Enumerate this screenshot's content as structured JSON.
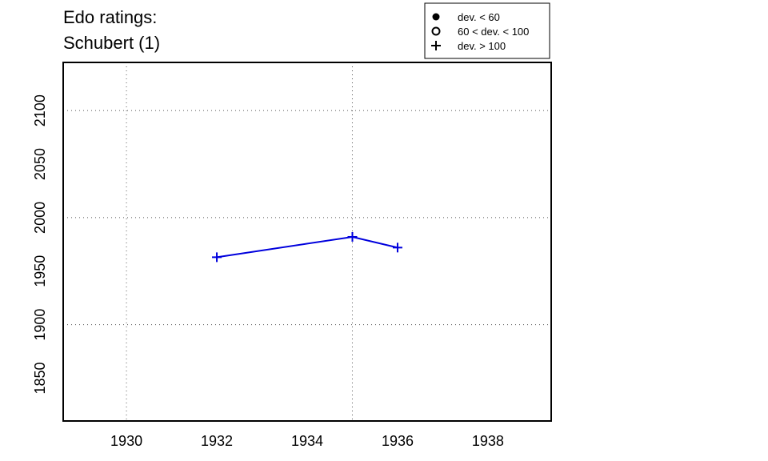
{
  "chart_data": {
    "type": "line",
    "title_lines": [
      "Edo ratings:",
      "Schubert (1)"
    ],
    "xlabel": "",
    "ylabel": "",
    "xlim": [
      1928.6,
      1939.4
    ],
    "ylim": [
      1810,
      2145
    ],
    "x_ticks": [
      1930,
      1932,
      1934,
      1936,
      1938
    ],
    "y_ticks": [
      1850,
      1900,
      1950,
      2000,
      2050,
      2100
    ],
    "x_grid": [
      1930,
      1935
    ],
    "y_grid": [
      1900,
      2000,
      2100
    ],
    "grid": true,
    "legend": {
      "placement": "top-right",
      "entries": [
        {
          "marker": "filled-circle",
          "label": "dev. < 60"
        },
        {
          "marker": "open-circle",
          "label": "60 < dev. < 100"
        },
        {
          "marker": "plus",
          "label": "dev. > 100"
        }
      ]
    },
    "series": [
      {
        "color": "#0000dd",
        "marker": "plus",
        "x": [
          1932,
          1935,
          1936
        ],
        "y": [
          1963,
          1982,
          1972
        ]
      }
    ]
  }
}
